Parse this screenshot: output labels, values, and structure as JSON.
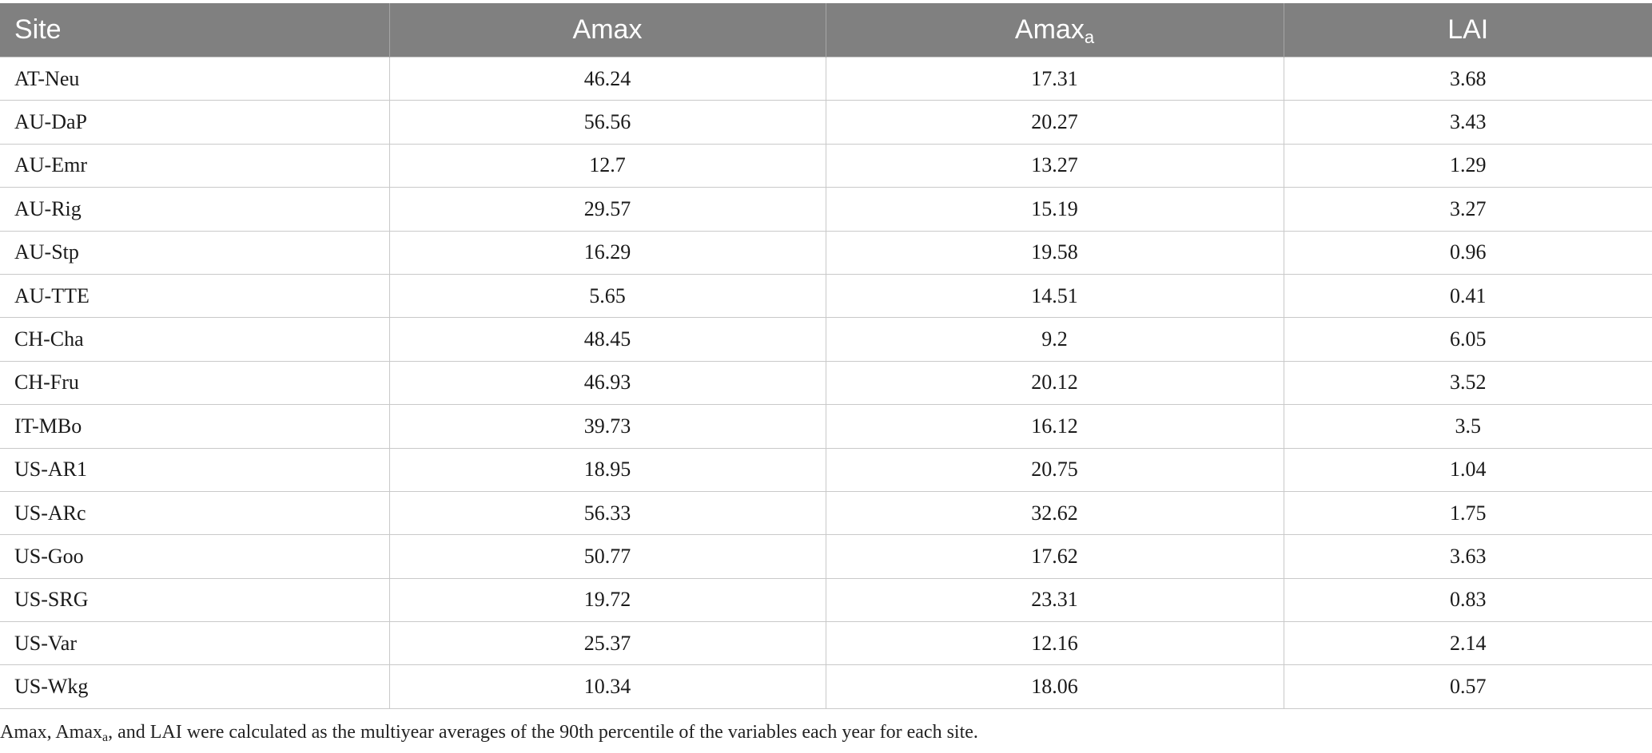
{
  "table": {
    "headers": [
      {
        "text": "Site",
        "sub": ""
      },
      {
        "text": "Amax",
        "sub": ""
      },
      {
        "text": "Amax",
        "sub": "a"
      },
      {
        "text": "LAI",
        "sub": ""
      }
    ],
    "rows": [
      [
        "AT-Neu",
        "46.24",
        "17.31",
        "3.68"
      ],
      [
        "AU-DaP",
        "56.56",
        "20.27",
        "3.43"
      ],
      [
        "AU-Emr",
        "12.7",
        "13.27",
        "1.29"
      ],
      [
        "AU-Rig",
        "29.57",
        "15.19",
        "3.27"
      ],
      [
        "AU-Stp",
        "16.29",
        "19.58",
        "0.96"
      ],
      [
        "AU-TTE",
        "5.65",
        "14.51",
        "0.41"
      ],
      [
        "CH-Cha",
        "48.45",
        "9.2",
        "6.05"
      ],
      [
        "CH-Fru",
        "46.93",
        "20.12",
        "3.52"
      ],
      [
        "IT-MBo",
        "39.73",
        "16.12",
        "3.5"
      ],
      [
        "US-AR1",
        "18.95",
        "20.75",
        "1.04"
      ],
      [
        "US-ARc",
        "56.33",
        "32.62",
        "1.75"
      ],
      [
        "US-Goo",
        "50.77",
        "17.62",
        "3.63"
      ],
      [
        "US-SRG",
        "19.72",
        "23.31",
        "0.83"
      ],
      [
        "US-Var",
        "25.37",
        "12.16",
        "2.14"
      ],
      [
        "US-Wkg",
        "10.34",
        "18.06",
        "0.57"
      ]
    ]
  },
  "footnote": {
    "part1": "Amax, Amax",
    "sub": "a",
    "part2": ", and LAI were calculated as the multiyear averages of the 90th percentile of the variables each year for each site."
  },
  "colors": {
    "header_bg": "#808080",
    "header_text": "#ffffff",
    "grid_line": "#c9c9c9"
  }
}
